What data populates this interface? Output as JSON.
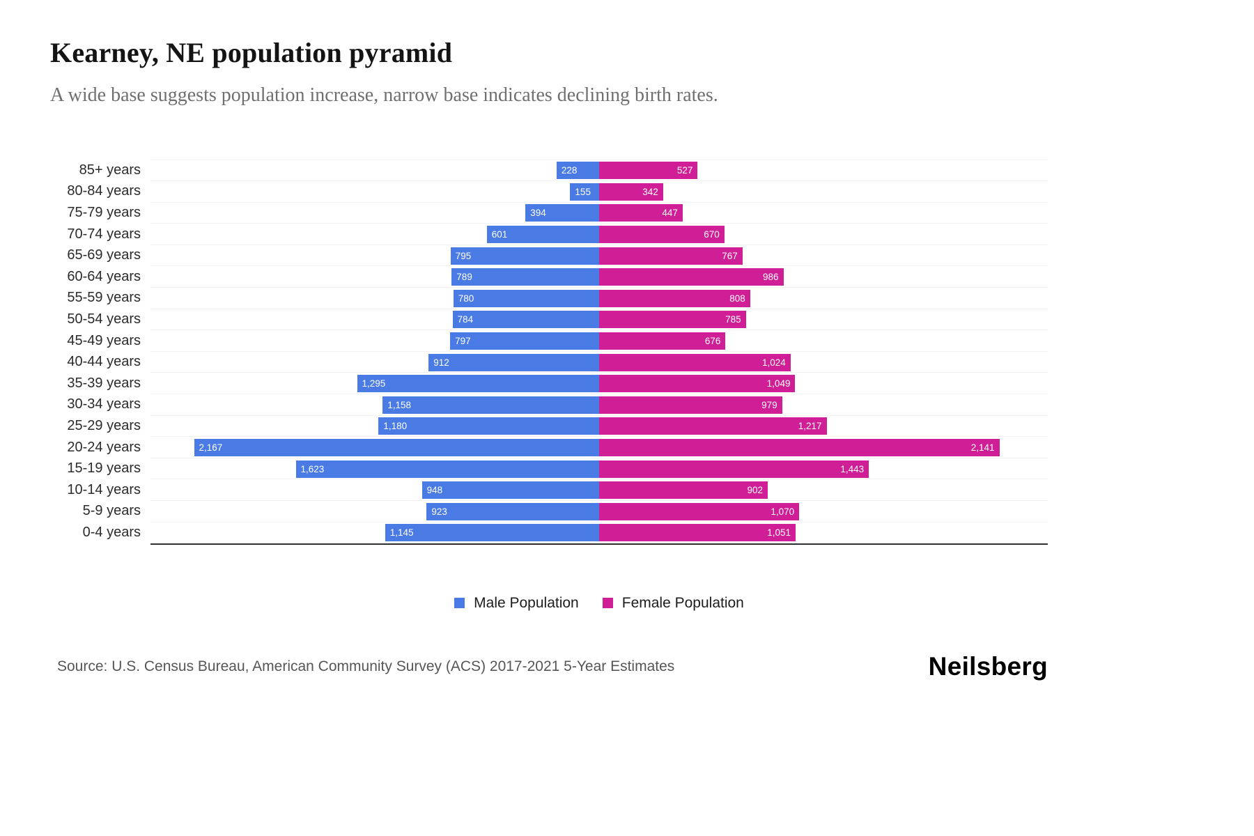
{
  "header": {
    "title": "Kearney, NE population pyramid",
    "subtitle": "A wide base suggests population increase, narrow base indicates declining birth rates."
  },
  "chart_data": {
    "type": "bar",
    "variant": "population-pyramid",
    "categories": [
      "85+ years",
      "80-84 years",
      "75-79 years",
      "70-74 years",
      "65-69 years",
      "60-64 years",
      "55-59 years",
      "50-54 years",
      "45-49 years",
      "40-44 years",
      "35-39 years",
      "30-34 years",
      "25-29 years",
      "20-24 years",
      "15-19 years",
      "10-14 years",
      "5-9 years",
      "0-4 years"
    ],
    "series": [
      {
        "name": "Male Population",
        "side": "left",
        "color": "#4A7BE5",
        "values": [
          228,
          155,
          394,
          601,
          795,
          789,
          780,
          784,
          797,
          912,
          1295,
          1158,
          1180,
          2167,
          1623,
          948,
          923,
          1145
        ]
      },
      {
        "name": "Female Population",
        "side": "right",
        "color": "#D01E96",
        "values": [
          527,
          342,
          447,
          670,
          767,
          986,
          808,
          785,
          676,
          1024,
          1049,
          979,
          1217,
          2141,
          1443,
          902,
          1070,
          1051
        ]
      }
    ],
    "value_axis_max_per_side": 2400,
    "grid": "faint horizontal row lines",
    "legend_position": "bottom-center",
    "value_labels": "inside outer bar ends, white"
  },
  "legend": {
    "items": [
      {
        "label": "Male Population",
        "color": "#4A7BE5"
      },
      {
        "label": "Female Population",
        "color": "#D01E96"
      }
    ]
  },
  "footer": {
    "source": "Source: U.S. Census Bureau, American Community Survey (ACS) 2017-2021 5-Year Estimates",
    "brand": "Neilsberg"
  }
}
